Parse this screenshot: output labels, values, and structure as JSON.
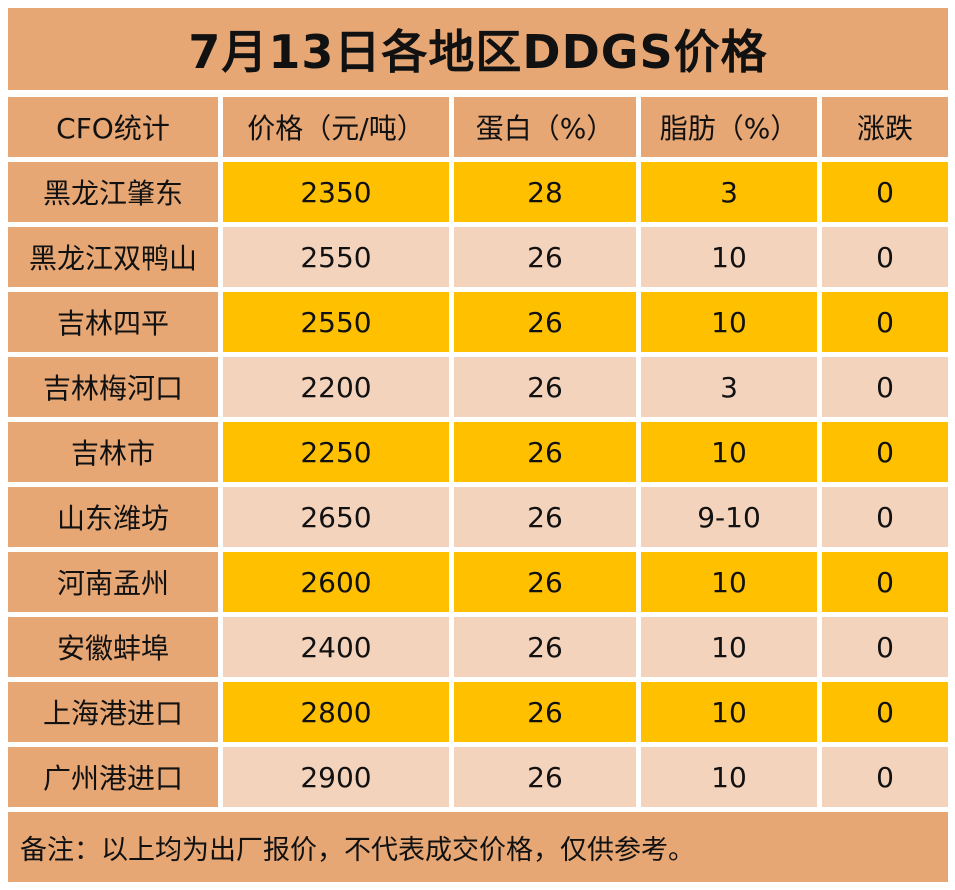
{
  "title": "7月13日各地区DDGS价格",
  "headers": [
    "CFO统计",
    "价格（元/吨）",
    "蛋白（%）",
    "脂肪（%）",
    "涨跌"
  ],
  "rows": [
    {
      "region": "黑龙江肇东",
      "price": "2350",
      "protein": "28",
      "fat": "3",
      "change": "0"
    },
    {
      "region": "黑龙江双鸭山",
      "price": "2550",
      "protein": "26",
      "fat": "10",
      "change": "0"
    },
    {
      "region": "吉林四平",
      "price": "2550",
      "protein": "26",
      "fat": "10",
      "change": "0"
    },
    {
      "region": "吉林梅河口",
      "price": "2200",
      "protein": "26",
      "fat": "3",
      "change": "0"
    },
    {
      "region": "吉林市",
      "price": "2250",
      "protein": "26",
      "fat": "10",
      "change": "0"
    },
    {
      "region": "山东潍坊",
      "price": "2650",
      "protein": "26",
      "fat": "9-10",
      "change": "0"
    },
    {
      "region": "河南孟州",
      "price": "2600",
      "protein": "26",
      "fat": "10",
      "change": "0"
    },
    {
      "region": "安徽蚌埠",
      "price": "2400",
      "protein": "26",
      "fat": "10",
      "change": "0"
    },
    {
      "region": "上海港进口",
      "price": "2800",
      "protein": "26",
      "fat": "10",
      "change": "0"
    },
    {
      "region": "广州港进口",
      "price": "2900",
      "protein": "26",
      "fat": "10",
      "change": "0"
    }
  ],
  "note": "备注：以上均为出厂报价，不代表成交价格，仅供参考。",
  "colors": {
    "header_bg": "#e6a775",
    "highlight_row": "#ffc000",
    "light_row": "#f4d3bd"
  }
}
